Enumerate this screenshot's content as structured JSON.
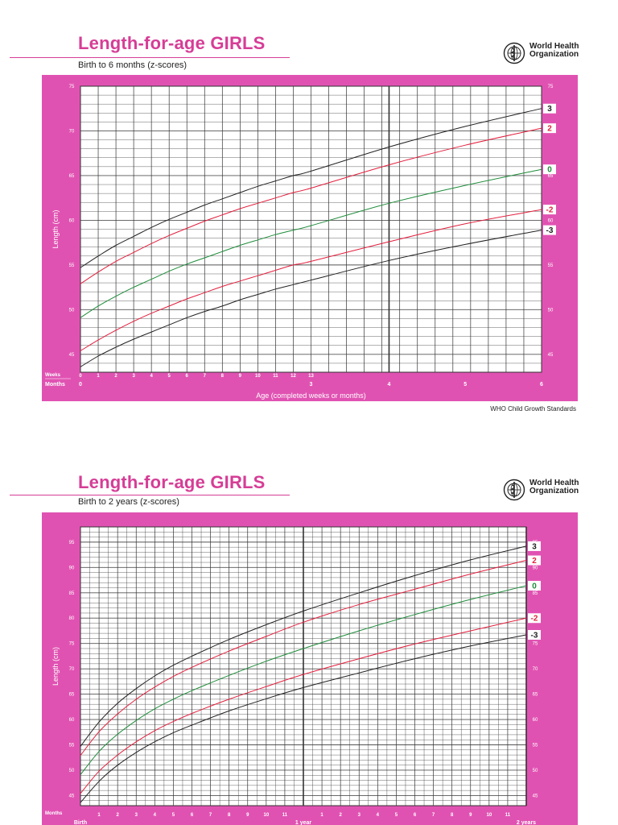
{
  "charts": [
    {
      "title": "Length-for-age GIRLS",
      "subtitle": "Birth to 6 months (z-scores)",
      "organization": [
        "World Health",
        "Organization"
      ]
    },
    {
      "title": "Length-for-age GIRLS",
      "subtitle": "Birth to 2 years (z-scores)",
      "organization": [
        "World Health",
        "Organization"
      ]
    }
  ],
  "footer": "WHO Child Growth Standards",
  "colors": {
    "panel": "#e052b2",
    "title": "#d63d96",
    "sd3": "#222222",
    "sd2": "#e31f3d",
    "median": "#1e8c3a",
    "grid": "#555555"
  },
  "chart_data": [
    {
      "type": "line",
      "title": "Length-for-age GIRLS",
      "subtitle": "Birth to 6 months (z-scores)",
      "ylabel": "Length (cm)",
      "xlabel": "Age (completed weeks or months)",
      "ylim": [
        43,
        75
      ],
      "xlim_weeks": [
        0,
        26
      ],
      "y_ticks": [
        45,
        50,
        55,
        60,
        65,
        70,
        75
      ],
      "weeks_row_label": "Weeks",
      "months_row_label": "Months",
      "week_tick_labels": [
        "0",
        "1",
        "2",
        "3",
        "4",
        "5",
        "6",
        "7",
        "8",
        "9",
        "10",
        "11",
        "12",
        "13"
      ],
      "month_tick_labels": [
        {
          "label": "0",
          "weeks": 0
        },
        {
          "label": "3",
          "weeks": 13
        },
        {
          "label": "4",
          "weeks": 17.4
        },
        {
          "label": "5",
          "weeks": 21.7
        },
        {
          "label": "6",
          "weeks": 26
        }
      ],
      "x": [
        0,
        1,
        2,
        3,
        4,
        5,
        6,
        7,
        8,
        9,
        10,
        11,
        12,
        13,
        17.4,
        21.7,
        26
      ],
      "series": [
        {
          "name": "3",
          "color": "#222222",
          "values": [
            54.7,
            56.0,
            57.2,
            58.2,
            59.2,
            60.1,
            60.9,
            61.7,
            62.4,
            63.1,
            63.8,
            64.4,
            65.0,
            65.5,
            68.2,
            70.5,
            72.5
          ]
        },
        {
          "name": "2",
          "color": "#e31f3d",
          "values": [
            52.9,
            54.2,
            55.4,
            56.4,
            57.4,
            58.3,
            59.1,
            59.9,
            60.6,
            61.3,
            61.9,
            62.5,
            63.1,
            63.6,
            66.2,
            68.4,
            70.3
          ]
        },
        {
          "name": "0",
          "color": "#1e8c3a",
          "values": [
            49.1,
            50.4,
            51.5,
            52.5,
            53.4,
            54.3,
            55.1,
            55.8,
            56.5,
            57.2,
            57.8,
            58.4,
            58.9,
            59.4,
            61.9,
            63.9,
            65.7
          ]
        },
        {
          "name": "-2",
          "color": "#e31f3d",
          "values": [
            45.4,
            46.6,
            47.7,
            48.7,
            49.6,
            50.4,
            51.2,
            51.9,
            52.6,
            53.2,
            53.8,
            54.4,
            55.0,
            55.4,
            57.6,
            59.6,
            61.2
          ]
        },
        {
          "name": "-3",
          "color": "#222222",
          "values": [
            43.6,
            44.8,
            45.8,
            46.7,
            47.5,
            48.3,
            49.1,
            49.8,
            50.4,
            51.1,
            51.7,
            52.3,
            52.8,
            53.3,
            55.5,
            57.3,
            58.9
          ]
        }
      ]
    },
    {
      "type": "line",
      "title": "Length-for-age GIRLS",
      "subtitle": "Birth to 2 years (z-scores)",
      "ylabel": "Length (cm)",
      "ylim": [
        43,
        98
      ],
      "xlim_months": [
        0,
        24
      ],
      "y_ticks": [
        45,
        50,
        55,
        60,
        65,
        70,
        75,
        80,
        85,
        90,
        95
      ],
      "months_row_label": "Months",
      "month_tick_labels": [
        "1",
        "2",
        "3",
        "4",
        "5",
        "6",
        "7",
        "8",
        "9",
        "10",
        "11",
        "1",
        "2",
        "3",
        "4",
        "5",
        "6",
        "7",
        "8",
        "9",
        "10",
        "11"
      ],
      "year_labels": [
        {
          "label": "Birth",
          "months": 0
        },
        {
          "label": "1 year",
          "months": 12
        },
        {
          "label": "2 years",
          "months": 24
        }
      ],
      "x": [
        0,
        1,
        2,
        3,
        4,
        5,
        6,
        8,
        10,
        12,
        15,
        18,
        21,
        24
      ],
      "series": [
        {
          "name": "3",
          "color": "#222222",
          "values": [
            54.7,
            59.5,
            63.2,
            66.1,
            68.6,
            70.7,
            72.5,
            75.8,
            78.7,
            81.4,
            85.0,
            88.4,
            91.5,
            94.2
          ]
        },
        {
          "name": "2",
          "color": "#e31f3d",
          "values": [
            52.9,
            57.6,
            61.1,
            64.0,
            66.4,
            68.5,
            70.3,
            73.5,
            76.4,
            79.2,
            82.7,
            85.7,
            88.7,
            91.4
          ]
        },
        {
          "name": "0",
          "color": "#1e8c3a",
          "values": [
            49.1,
            53.7,
            57.1,
            59.8,
            62.1,
            64.0,
            65.7,
            68.7,
            71.5,
            74.0,
            77.5,
            80.7,
            83.7,
            86.4
          ]
        },
        {
          "name": "-2",
          "color": "#e31f3d",
          "values": [
            45.4,
            49.8,
            53.0,
            55.6,
            57.8,
            59.6,
            61.2,
            64.0,
            66.5,
            68.9,
            72.0,
            74.9,
            77.5,
            80.0
          ]
        },
        {
          "name": "-3",
          "color": "#222222",
          "values": [
            43.6,
            47.8,
            51.0,
            53.5,
            55.6,
            57.4,
            58.9,
            61.7,
            64.1,
            66.3,
            69.2,
            72.0,
            74.5,
            76.7
          ]
        }
      ]
    }
  ]
}
